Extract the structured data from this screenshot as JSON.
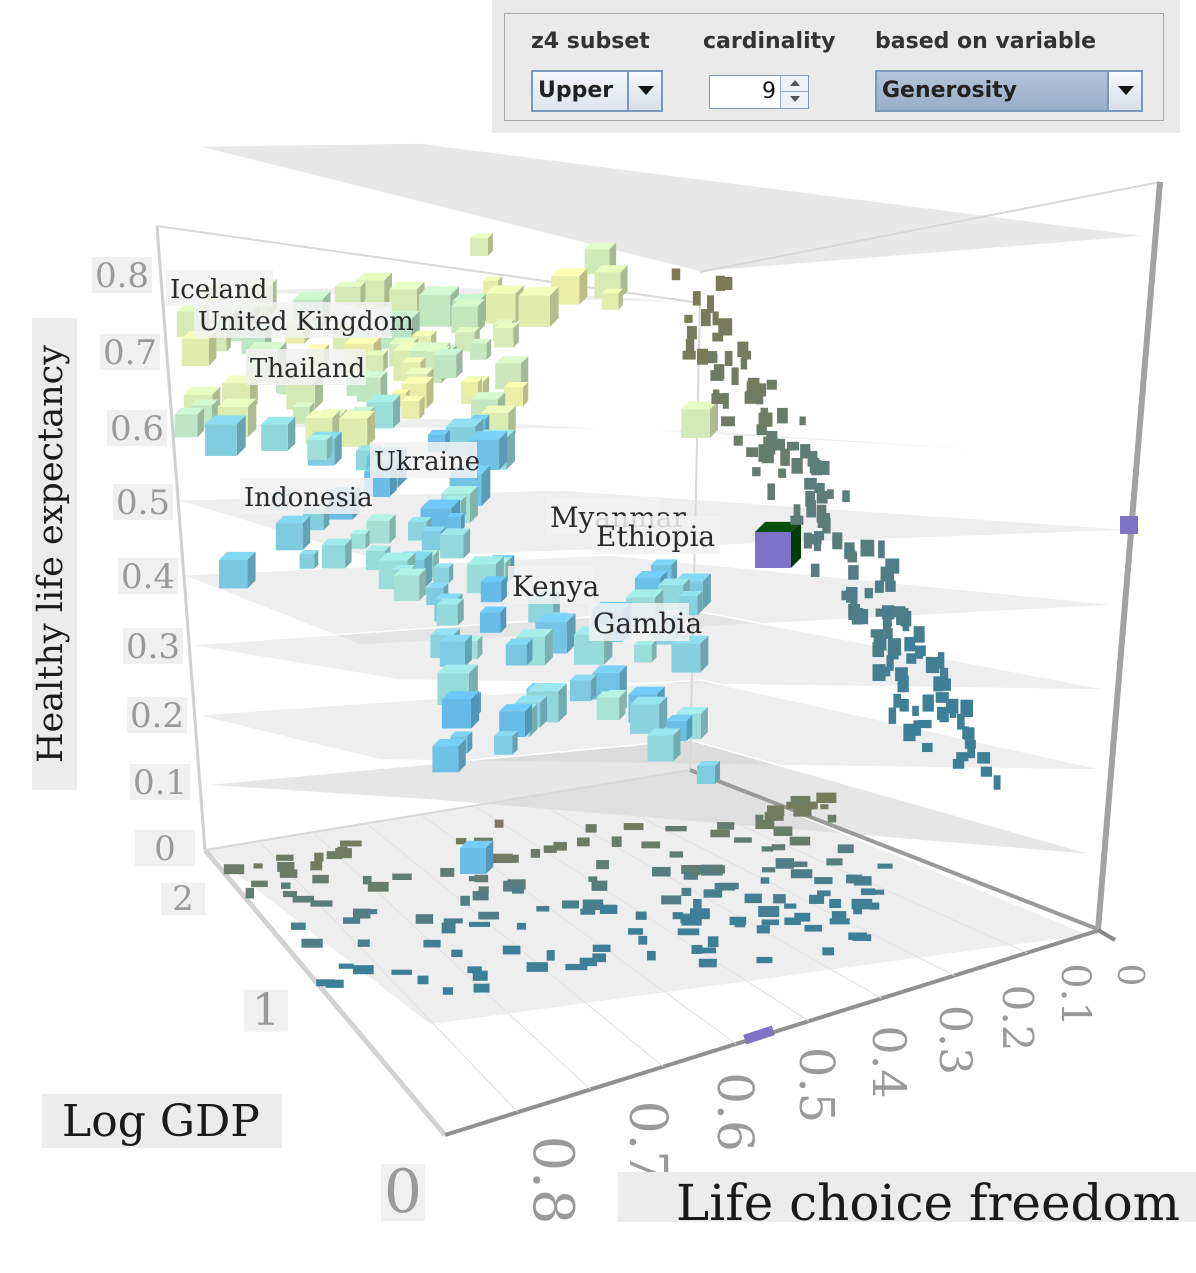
{
  "controls": {
    "subset_label": "z4 subset",
    "subset_value": "Upper",
    "cardinality_label": "cardinality",
    "cardinality_value": "9",
    "variable_label": "based on variable",
    "variable_value": "Generosity"
  },
  "chart_data": {
    "type": "scatter",
    "dimensions": 3,
    "xlabel": "Log GDP",
    "ylabel": "Healthy life expectancy",
    "zlabel": "Life choice freedom",
    "x_ticks": [
      "0",
      "1",
      "2"
    ],
    "y_ticks": [
      "0",
      "0.1",
      "0.2",
      "0.3",
      "0.4",
      "0.5",
      "0.6",
      "0.7",
      "0.8"
    ],
    "z_ticks": [
      "0",
      "0.1",
      "0.2",
      "0.3",
      "0.4",
      "0.5",
      "0.6",
      "0.7",
      "0.8"
    ],
    "color_by": "Generosity",
    "labeled_points": [
      {
        "name": "Iceland"
      },
      {
        "name": "United Kingdom"
      },
      {
        "name": "Thailand"
      },
      {
        "name": "Ukraine"
      },
      {
        "name": "Indonesia"
      },
      {
        "name": "Myanmar"
      },
      {
        "name": "Ethiopia"
      },
      {
        "name": "Kenya"
      },
      {
        "name": "Gambia"
      }
    ],
    "colors": {
      "high": "#f6f0a0",
      "mid": "#9ee0d8",
      "low": "#5fb6ea",
      "shadow": "#7d7a55",
      "shadow_low": "#3e7f98",
      "highlight": "#7f73c8"
    }
  }
}
